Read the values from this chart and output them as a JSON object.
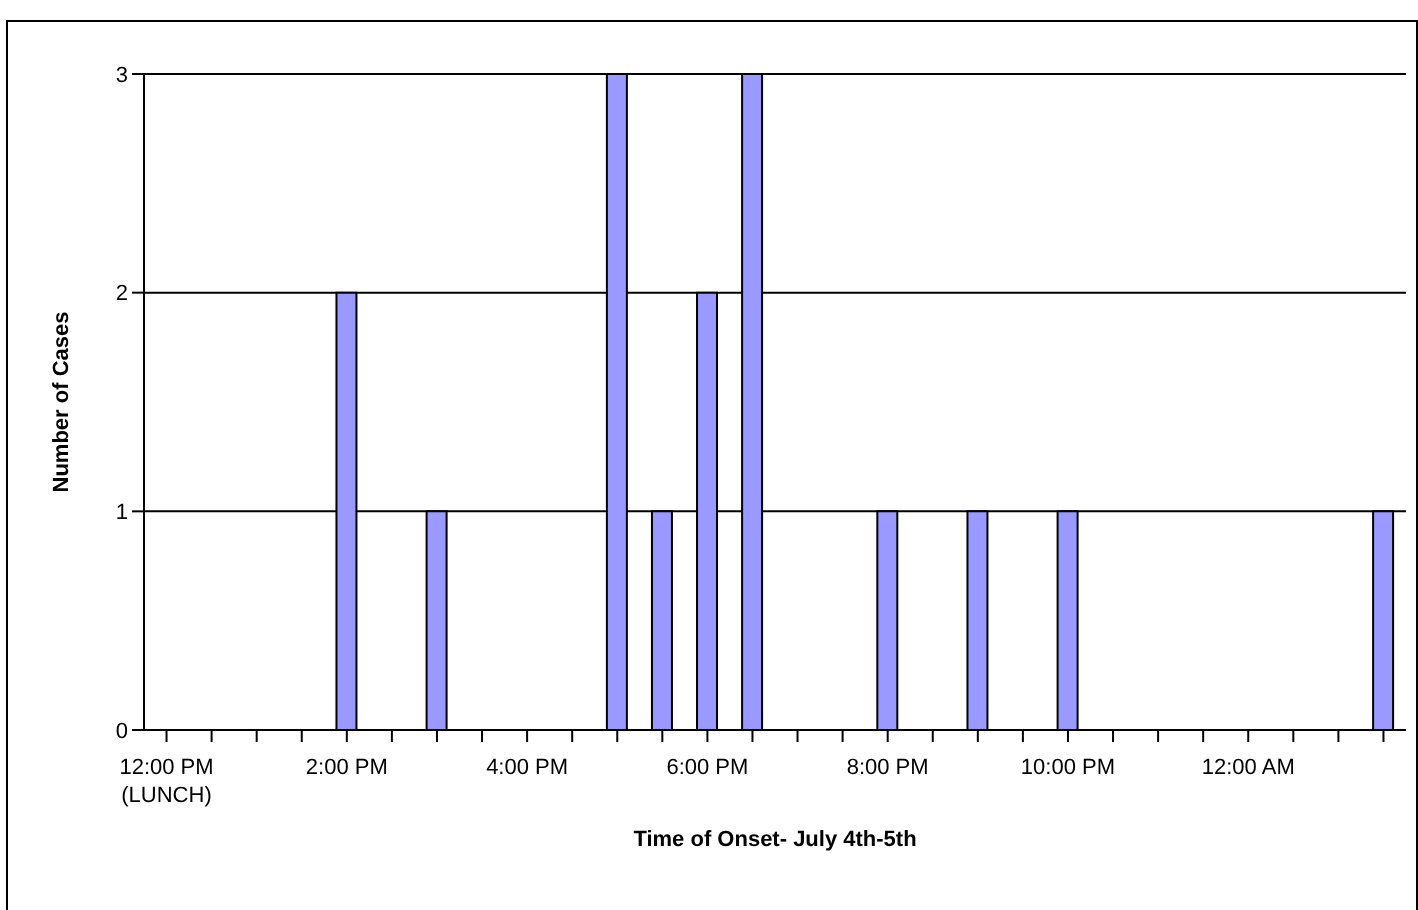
{
  "chart_data": {
    "type": "bar",
    "xlabel": "Time of Onset- July 4th-5th",
    "ylabel": "Number of Cases",
    "categories": [
      "12:00 PM\n(LUNCH)",
      null,
      null,
      null,
      "2:00 PM",
      null,
      null,
      null,
      "4:00 PM",
      null,
      null,
      null,
      "6:00 PM",
      null,
      null,
      null,
      "8:00 PM",
      null,
      null,
      null,
      "10:00 PM",
      null,
      null,
      null,
      "12:00 AM",
      null,
      null,
      null
    ],
    "values": [
      0,
      0,
      0,
      0,
      2,
      0,
      1,
      0,
      0,
      0,
      3,
      1,
      2,
      3,
      0,
      0,
      1,
      0,
      1,
      0,
      1,
      0,
      0,
      0,
      0,
      0,
      0,
      1
    ],
    "color": "#9999ff",
    "ylim": [
      0,
      3
    ],
    "yticks": [
      0,
      1,
      2,
      3
    ],
    "grid": "y"
  }
}
